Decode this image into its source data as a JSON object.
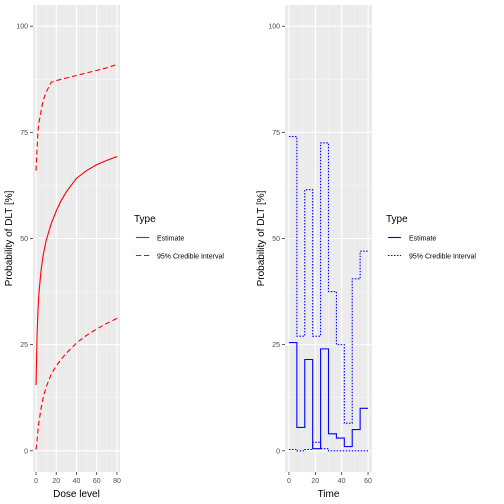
{
  "chart_data": [
    {
      "type": "line",
      "xlabel": "Dose level",
      "ylabel": "Probability of DLT [%]",
      "xlim": [
        -3,
        83
      ],
      "ylim": [
        -5,
        105
      ],
      "x_ticks": [
        0,
        20,
        40,
        60,
        80
      ],
      "y_ticks": [
        0,
        25,
        50,
        75,
        100
      ],
      "grid": true,
      "legend": {
        "title": "Type",
        "position": "right"
      },
      "series": [
        {
          "name": "Estimate",
          "color": "#ff0000",
          "style": "solid",
          "x": [
            0,
            1,
            2,
            3,
            5,
            7,
            10,
            15,
            20,
            25,
            30,
            40,
            50,
            60,
            70,
            80
          ],
          "y": [
            15.5,
            27.0,
            33.5,
            37.5,
            42.5,
            46.0,
            49.5,
            53.5,
            56.5,
            59.0,
            61.0,
            64.2,
            66.0,
            67.4,
            68.4,
            69.3
          ]
        },
        {
          "name": "95% Credible Interval",
          "color": "#ff0000",
          "style": "dashed",
          "x": [
            0,
            1,
            2,
            3,
            5,
            7,
            10,
            15,
            20,
            30,
            40,
            50,
            60,
            70,
            80
          ],
          "y": [
            66.0,
            71.0,
            75.5,
            77.5,
            80.0,
            82.5,
            84.5,
            86.8,
            87.2,
            87.8,
            88.4,
            89.0,
            89.6,
            90.2,
            91.0
          ]
        },
        {
          "name": "95% Credible Interval",
          "color": "#ff0000",
          "style": "dashed",
          "x": [
            0,
            1,
            2,
            3,
            5,
            7,
            10,
            15,
            20,
            25,
            30,
            40,
            50,
            60,
            70,
            80
          ],
          "y": [
            0.3,
            2.5,
            5.0,
            7.0,
            10.0,
            12.5,
            15.0,
            18.0,
            20.0,
            21.6,
            23.0,
            25.4,
            27.2,
            28.7,
            30.0,
            31.2
          ]
        }
      ]
    },
    {
      "type": "line",
      "xlabel": "Time",
      "ylabel": "Probability of DLT [%]",
      "xlim": [
        -3,
        63
      ],
      "ylim": [
        -5,
        105
      ],
      "x_ticks": [
        0,
        20,
        40,
        60
      ],
      "y_ticks": [
        0,
        25,
        50,
        75,
        100
      ],
      "grid": true,
      "legend": {
        "title": "Type",
        "position": "right"
      },
      "series": [
        {
          "name": "Estimate",
          "color": "#0000ff",
          "style": "solid",
          "step": true,
          "x": [
            0,
            6,
            12,
            18,
            24,
            30,
            36,
            42,
            48,
            54,
            60
          ],
          "y": [
            25.5,
            5.5,
            21.5,
            0.5,
            24.0,
            4.0,
            3.0,
            1.0,
            5.0,
            10.0,
            10.0
          ]
        },
        {
          "name": "95% Credible Interval",
          "color": "#0000ff",
          "style": "dotted",
          "step": true,
          "x": [
            0,
            6,
            12,
            18,
            24,
            30,
            36,
            42,
            48,
            54,
            60
          ],
          "y": [
            74.0,
            27.0,
            61.5,
            27.0,
            72.5,
            37.5,
            25.0,
            6.5,
            40.5,
            47.0,
            47.0
          ]
        },
        {
          "name": "95% Credible Interval",
          "color": "#0000ff",
          "style": "dotted",
          "step": true,
          "x": [
            0,
            6,
            12,
            18,
            24,
            30,
            36,
            42,
            48,
            54,
            60
          ],
          "y": [
            0.3,
            0.0,
            0.3,
            2.0,
            0.5,
            0.0,
            0.0,
            0.0,
            0.0,
            0.0,
            0.0
          ]
        }
      ]
    }
  ],
  "legends": [
    {
      "title": "Type",
      "items": [
        {
          "label": "Estimate",
          "color": "#ff0000",
          "style": "solid"
        },
        {
          "label": "95% Credible Interval",
          "color": "#ff0000",
          "style": "dashed"
        }
      ]
    },
    {
      "title": "Type",
      "items": [
        {
          "label": "Estimate",
          "color": "#0000ff",
          "style": "solid"
        },
        {
          "label": "95% Credible Interval",
          "color": "#0000ff",
          "style": "dotted"
        }
      ]
    }
  ],
  "colors": {
    "panel_background": "#ebebeb",
    "grid_major": "#ffffff",
    "tick_text": "#4d4d4d"
  }
}
